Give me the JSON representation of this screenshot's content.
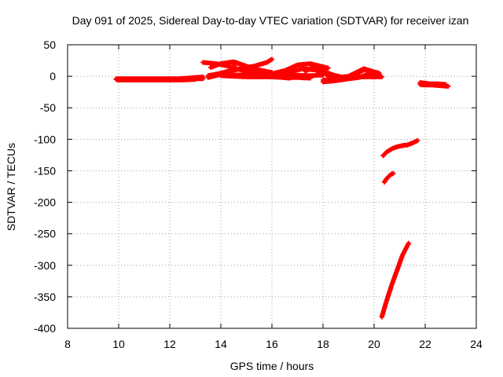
{
  "chart_data": {
    "type": "scatter",
    "title": "Day 091 of 2025, Sidereal Day-to-day VTEC variation (SDTVAR) for receiver izan",
    "xlabel": "GPS time / hours",
    "ylabel": "SDTVAR / TECUs",
    "xlim": [
      8,
      24
    ],
    "ylim": [
      -400,
      50
    ],
    "xticks": [
      8,
      10,
      12,
      14,
      16,
      18,
      20,
      22,
      24
    ],
    "yticks": [
      -400,
      -350,
      -300,
      -250,
      -200,
      -150,
      -100,
      -50,
      0,
      50
    ],
    "grid": true,
    "marker": "plus",
    "color": "#ff0000",
    "series": [
      {
        "segments": [
          [
            [
              9.9,
              -4
            ],
            [
              10.3,
              -4
            ],
            [
              10.8,
              -4
            ],
            [
              11.3,
              -4
            ],
            [
              11.8,
              -4
            ],
            [
              12.3,
              -4
            ],
            [
              12.7,
              -3
            ],
            [
              13.0,
              -2
            ],
            [
              13.3,
              -1
            ]
          ],
          [
            [
              9.9,
              -5
            ],
            [
              10.5,
              -5
            ],
            [
              11.0,
              -5
            ],
            [
              11.5,
              -5
            ],
            [
              12.0,
              -5
            ],
            [
              12.5,
              -5
            ],
            [
              13.0,
              -4
            ],
            [
              13.3,
              -4
            ]
          ],
          [
            [
              9.95,
              -6
            ],
            [
              10.6,
              -6
            ],
            [
              11.2,
              -6
            ],
            [
              11.8,
              -6
            ],
            [
              12.4,
              -6
            ],
            [
              13.0,
              -5
            ]
          ],
          [
            [
              13.5,
              1
            ],
            [
              13.9,
              4
            ],
            [
              14.3,
              8
            ],
            [
              14.8,
              12
            ],
            [
              15.3,
              16
            ],
            [
              15.8,
              22
            ],
            [
              16.0,
              27
            ]
          ],
          [
            [
              13.5,
              -2
            ],
            [
              14.0,
              3
            ],
            [
              14.4,
              9
            ],
            [
              14.6,
              22
            ],
            [
              14.9,
              16
            ],
            [
              15.3,
              9
            ],
            [
              15.8,
              5
            ],
            [
              16.3,
              3
            ],
            [
              16.8,
              2
            ],
            [
              17.3,
              1
            ]
          ],
          [
            [
              13.3,
              22
            ],
            [
              13.8,
              20
            ],
            [
              14.2,
              17
            ],
            [
              14.7,
              11
            ],
            [
              15.2,
              6
            ],
            [
              15.7,
              2
            ],
            [
              16.2,
              -1
            ],
            [
              16.7,
              -3
            ]
          ],
          [
            [
              13.6,
              14
            ],
            [
              14.0,
              20
            ],
            [
              14.5,
              23
            ],
            [
              15.0,
              16
            ],
            [
              15.5,
              10
            ],
            [
              16.0,
              6
            ]
          ],
          [
            [
              14.0,
              3
            ],
            [
              14.5,
              2
            ],
            [
              15.0,
              2
            ],
            [
              15.5,
              2
            ],
            [
              16.0,
              2
            ],
            [
              16.5,
              1
            ],
            [
              17.0,
              1
            ],
            [
              17.5,
              1
            ],
            [
              18.0,
              2
            ]
          ],
          [
            [
              14.0,
              1
            ],
            [
              14.5,
              0
            ],
            [
              15.0,
              -1
            ],
            [
              15.5,
              -1
            ],
            [
              16.0,
              -1
            ],
            [
              16.5,
              -2
            ],
            [
              17.0,
              -2
            ],
            [
              17.5,
              -3
            ]
          ],
          [
            [
              16.0,
              4
            ],
            [
              16.5,
              9
            ],
            [
              17.0,
              18
            ],
            [
              17.5,
              20
            ],
            [
              17.8,
              17
            ],
            [
              18.2,
              13
            ]
          ],
          [
            [
              16.2,
              2
            ],
            [
              16.7,
              7
            ],
            [
              17.2,
              12
            ],
            [
              17.7,
              10
            ],
            [
              18.0,
              5
            ],
            [
              18.3,
              0
            ]
          ],
          [
            [
              17.3,
              8
            ],
            [
              17.6,
              14
            ],
            [
              18.0,
              8
            ],
            [
              18.4,
              2
            ],
            [
              18.8,
              -2
            ]
          ],
          [
            [
              18.0,
              -9
            ],
            [
              18.5,
              -7
            ],
            [
              19.0,
              -4
            ],
            [
              19.4,
              -2
            ],
            [
              19.7,
              2
            ],
            [
              20.2,
              3
            ]
          ],
          [
            [
              18.0,
              -6
            ],
            [
              18.4,
              -5
            ],
            [
              18.8,
              -3
            ],
            [
              19.2,
              2
            ],
            [
              19.6,
              10
            ],
            [
              19.9,
              8
            ],
            [
              20.2,
              2
            ]
          ],
          [
            [
              18.2,
              -3
            ],
            [
              18.6,
              -2
            ],
            [
              19.0,
              0
            ],
            [
              19.3,
              6
            ],
            [
              19.6,
              12
            ],
            [
              20.0,
              7
            ],
            [
              20.2,
              5
            ]
          ],
          [
            [
              19.2,
              -1
            ],
            [
              19.6,
              -1
            ],
            [
              20.0,
              -1
            ],
            [
              20.3,
              -1
            ]
          ],
          [
            [
              21.8,
              -10
            ],
            [
              22.0,
              -11
            ],
            [
              22.2,
              -12
            ],
            [
              22.5,
              -12
            ],
            [
              22.8,
              -13
            ]
          ],
          [
            [
              21.8,
              -13
            ],
            [
              22.0,
              -14
            ],
            [
              22.3,
              -14
            ],
            [
              22.6,
              -15
            ],
            [
              22.9,
              -16
            ]
          ],
          [
            [
              20.35,
              -126
            ],
            [
              20.5,
              -120
            ],
            [
              20.7,
              -115
            ],
            [
              20.9,
              -112
            ],
            [
              21.1,
              -110
            ],
            [
              21.3,
              -109
            ],
            [
              21.5,
              -106
            ],
            [
              21.7,
              -102
            ]
          ],
          [
            [
              20.4,
              -168
            ],
            [
              20.5,
              -162
            ],
            [
              20.65,
              -156
            ],
            [
              20.75,
              -154
            ]
          ],
          [
            [
              20.3,
              -382
            ],
            [
              20.5,
              -355
            ],
            [
              20.7,
              -330
            ],
            [
              20.9,
              -308
            ],
            [
              21.1,
              -285
            ],
            [
              21.35,
              -265
            ]
          ]
        ]
      }
    ]
  }
}
